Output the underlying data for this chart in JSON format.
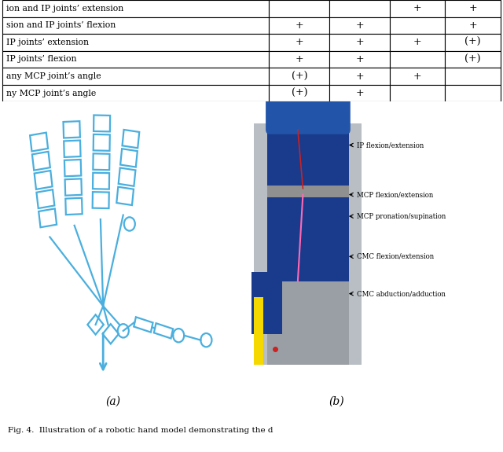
{
  "table": {
    "rows": [
      [
        "ion and IP joints’ extension",
        "",
        "",
        "+",
        "+"
      ],
      [
        "sion and IP joints’ flexion",
        "+",
        "+",
        "",
        "+"
      ],
      [
        "IP joints’ extension",
        "+",
        "+",
        "+",
        "(+)"
      ],
      [
        "IP joints’ flexion",
        "+",
        "+",
        "",
        "(+)"
      ],
      [
        "any MCP joint’s angle",
        "(+)",
        "+",
        "+",
        ""
      ],
      [
        "ny MCP joint’s angle",
        "(+)",
        "+",
        "",
        ""
      ]
    ]
  },
  "caption": "Fig. 4.  Illustration of a robotic hand model demonstrating the d",
  "label_a": "(a)",
  "label_b": "(b)",
  "cyan_color": "#4aafde",
  "bg_color": "#ffffff"
}
